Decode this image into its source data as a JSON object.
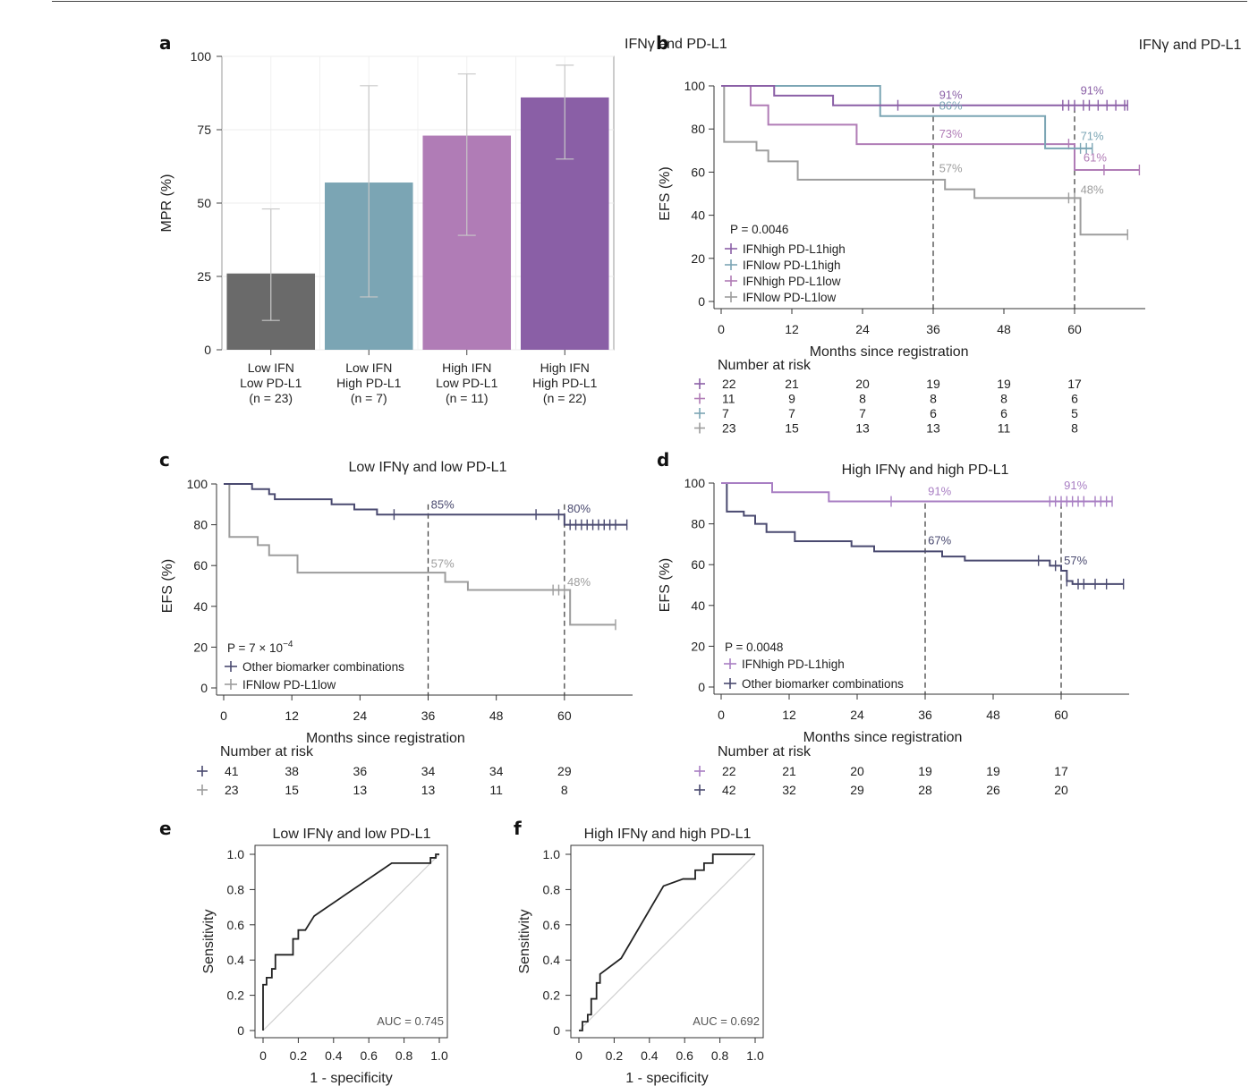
{
  "colors": {
    "purple_dark": "#8a5fa6",
    "purple_light": "#b07cb6",
    "teal": "#7ba5b4",
    "gray": "#9d9d9d",
    "dark_gray": "#6a6a6a",
    "navy": "#4a4a70",
    "ifnhigh_light": "#a87ec3"
  },
  "header": {
    "stray_title": "IFNγ and PD-L1"
  },
  "chart_data": [
    {
      "panel": "a",
      "type": "bar",
      "title": "",
      "ylabel": "MPR (%)",
      "ylim": [
        0,
        100
      ],
      "yticks": [
        "0",
        "25",
        "50",
        "75",
        "100"
      ],
      "grid": true,
      "categories": [
        [
          "Low IFN",
          "Low PD-L1",
          "(n = 23)"
        ],
        [
          "Low IFN",
          "High PD-L1",
          "(n = 7)"
        ],
        [
          "High IFN",
          "Low PD-L1",
          "(n = 11)"
        ],
        [
          "High IFN",
          "High PD-L1",
          "(n = 22)"
        ]
      ],
      "values": [
        26,
        57,
        73,
        86
      ],
      "error_low": [
        10,
        18,
        39,
        65
      ],
      "error_high": [
        48,
        90,
        94,
        97
      ],
      "bar_colors": [
        "#6a6a6a",
        "#7ba5b4",
        "#b07cb6",
        "#8a5fa6"
      ]
    },
    {
      "panel": "b",
      "type": "line",
      "title": "IFNγ and PD-L1",
      "xlabel": "Months since registration",
      "ylabel": "EFS (%)",
      "xlim": [
        0,
        72
      ],
      "ylim": [
        0,
        100
      ],
      "xticks": [
        "0",
        "12",
        "24",
        "36",
        "48",
        "60"
      ],
      "yticks": [
        "0",
        "20",
        "40",
        "60",
        "80",
        "100"
      ],
      "pvalue": "P = 0.0046",
      "vlines": [
        36,
        60
      ],
      "series": [
        {
          "name": "IFNhigh PD-L1high",
          "color": "#8a5fa6",
          "steps": [
            [
              0,
              100
            ],
            [
              9,
              95.5
            ],
            [
              19,
              91
            ],
            [
              69,
              91
            ]
          ],
          "censor": [
            30,
            58,
            59,
            60,
            61.5,
            62.5,
            64,
            65.5,
            67,
            68.5,
            69
          ]
        },
        {
          "name": "IFNlow PD-L1high",
          "color": "#7ba5b4",
          "steps": [
            [
              0,
              100
            ],
            [
              27,
              86
            ],
            [
              55,
              71
            ],
            [
              63,
              71
            ]
          ],
          "censor": [
            61,
            62,
            63
          ]
        },
        {
          "name": "IFNhigh PD-L1low",
          "color": "#b07cb6",
          "steps": [
            [
              0,
              100
            ],
            [
              5,
              91
            ],
            [
              8,
              82
            ],
            [
              23,
              73
            ],
            [
              60,
              73
            ],
            [
              60,
              61
            ],
            [
              71,
              61
            ]
          ],
          "censor": [
            59,
            65,
            71
          ]
        },
        {
          "name": "IFNlow PD-L1low",
          "color": "#9d9d9d",
          "steps": [
            [
              0,
              100
            ],
            [
              0.5,
              74
            ],
            [
              6,
              70
            ],
            [
              8,
              65
            ],
            [
              13,
              56.5
            ],
            [
              38,
              52
            ],
            [
              43,
              48
            ],
            [
              61,
              48
            ],
            [
              61,
              31
            ],
            [
              69,
              31
            ]
          ],
          "censor": [
            59,
            60,
            69
          ]
        }
      ],
      "annotations": [
        {
          "text": "91%",
          "x": 37,
          "y": 94,
          "color": "#8a5fa6"
        },
        {
          "text": "86%",
          "x": 37,
          "y": 89,
          "color": "#7ba5b4"
        },
        {
          "text": "73%",
          "x": 37,
          "y": 76,
          "color": "#b07cb6"
        },
        {
          "text": "57%",
          "x": 37,
          "y": 60,
          "color": "#9d9d9d"
        },
        {
          "text": "91%",
          "x": 61,
          "y": 96,
          "color": "#8a5fa6"
        },
        {
          "text": "71%",
          "x": 61,
          "y": 75,
          "color": "#7ba5b4"
        },
        {
          "text": "61%",
          "x": 61.5,
          "y": 65,
          "color": "#b07cb6"
        },
        {
          "text": "48%",
          "x": 61,
          "y": 50,
          "color": "#9d9d9d"
        }
      ],
      "risk_title": "Number at risk",
      "risk_rows": [
        {
          "color": "#8a5fa6",
          "values": [
            "22",
            "21",
            "20",
            "19",
            "19",
            "17"
          ]
        },
        {
          "color": "#b07cb6",
          "values": [
            "11",
            "9",
            "8",
            "8",
            "8",
            "6"
          ]
        },
        {
          "color": "#7ba5b4",
          "values": [
            "7",
            "7",
            "7",
            "6",
            "6",
            "5"
          ]
        },
        {
          "color": "#9d9d9d",
          "values": [
            "23",
            "15",
            "13",
            "13",
            "11",
            "8"
          ]
        }
      ]
    },
    {
      "panel": "c",
      "type": "line",
      "title": "Low IFNγ and low PD-L1",
      "xlabel": "Months since registration",
      "ylabel": "EFS (%)",
      "xlim": [
        0,
        72
      ],
      "ylim": [
        0,
        100
      ],
      "xticks": [
        "0",
        "12",
        "24",
        "36",
        "48",
        "60"
      ],
      "yticks": [
        "0",
        "20",
        "40",
        "60",
        "80",
        "100"
      ],
      "pvalue": "P = 7 × 10",
      "pvalue_exp": "−4",
      "vlines": [
        36,
        60
      ],
      "series": [
        {
          "name": "Other biomarker combinations",
          "color": "#4a4a70",
          "steps": [
            [
              0,
              100
            ],
            [
              1,
              100
            ],
            [
              5,
              97.5
            ],
            [
              8,
              95
            ],
            [
              9,
              92.5
            ],
            [
              19,
              90
            ],
            [
              23,
              87.5
            ],
            [
              27,
              85
            ],
            [
              55,
              85
            ],
            [
              60,
              82.5
            ],
            [
              60,
              80
            ],
            [
              71,
              80
            ]
          ],
          "censor": [
            30,
            55,
            59,
            61,
            62,
            63,
            64,
            65,
            66,
            67,
            68,
            69,
            71
          ]
        },
        {
          "name": "IFNlow PD-L1low",
          "color": "#9d9d9d",
          "steps": [
            [
              0,
              100
            ],
            [
              1,
              74
            ],
            [
              6,
              70
            ],
            [
              8,
              65
            ],
            [
              13,
              56.5
            ],
            [
              39,
              52
            ],
            [
              43,
              48
            ],
            [
              61,
              48
            ],
            [
              61,
              31
            ],
            [
              69,
              31
            ]
          ],
          "censor": [
            58,
            59,
            60,
            69
          ]
        }
      ],
      "annotations": [
        {
          "text": "85%",
          "x": 36.5,
          "y": 88,
          "color": "#4a4a70"
        },
        {
          "text": "80%",
          "x": 60.5,
          "y": 86,
          "color": "#4a4a70"
        },
        {
          "text": "57%",
          "x": 36.5,
          "y": 59,
          "color": "#9d9d9d"
        },
        {
          "text": "48%",
          "x": 60.5,
          "y": 50,
          "color": "#9d9d9d"
        }
      ],
      "risk_title": "Number at risk",
      "risk_rows": [
        {
          "color": "#4a4a70",
          "values": [
            "41",
            "38",
            "36",
            "34",
            "34",
            "29"
          ]
        },
        {
          "color": "#9d9d9d",
          "values": [
            "23",
            "15",
            "13",
            "13",
            "11",
            "8"
          ]
        }
      ]
    },
    {
      "panel": "d",
      "type": "line",
      "title": "High IFNγ and high PD-L1",
      "xlabel": "Months since registration",
      "ylabel": "EFS (%)",
      "xlim": [
        0,
        72
      ],
      "ylim": [
        0,
        100
      ],
      "xticks": [
        "0",
        "12",
        "24",
        "36",
        "48",
        "60"
      ],
      "yticks": [
        "0",
        "20",
        "40",
        "60",
        "80",
        "100"
      ],
      "pvalue": "P = 0.0048",
      "vlines": [
        36,
        60
      ],
      "series": [
        {
          "name": "IFNhigh PD-L1high",
          "color": "#a87ec3",
          "steps": [
            [
              0,
              100
            ],
            [
              9,
              95.5
            ],
            [
              19,
              91
            ],
            [
              69,
              91
            ]
          ],
          "censor": [
            30,
            58,
            59,
            60,
            61,
            62,
            63,
            64,
            66,
            67,
            68,
            69
          ]
        },
        {
          "name": "Other biomarker combinations",
          "color": "#4a4a70",
          "steps": [
            [
              0,
              100
            ],
            [
              1,
              86
            ],
            [
              4,
              84
            ],
            [
              6,
              80
            ],
            [
              8,
              76
            ],
            [
              13,
              71.5
            ],
            [
              23,
              69
            ],
            [
              27,
              66.5
            ],
            [
              39,
              64
            ],
            [
              43,
              62
            ],
            [
              58,
              59.5
            ],
            [
              60,
              57
            ],
            [
              61,
              52
            ],
            [
              62,
              50.5
            ],
            [
              71,
              50.5
            ]
          ],
          "censor": [
            56,
            59,
            61,
            63,
            64,
            66,
            68,
            71
          ]
        }
      ],
      "annotations": [
        {
          "text": "91%",
          "x": 36.5,
          "y": 94,
          "color": "#a87ec3"
        },
        {
          "text": "91%",
          "x": 60.5,
          "y": 97,
          "color": "#a87ec3"
        },
        {
          "text": "67%",
          "x": 36.5,
          "y": 70,
          "color": "#4a4a70"
        },
        {
          "text": "57%",
          "x": 60.5,
          "y": 60,
          "color": "#4a4a70"
        }
      ],
      "risk_title": "Number at risk",
      "risk_rows": [
        {
          "color": "#a87ec3",
          "values": [
            "22",
            "21",
            "20",
            "19",
            "19",
            "17"
          ]
        },
        {
          "color": "#4a4a70",
          "values": [
            "42",
            "32",
            "29",
            "28",
            "26",
            "20"
          ]
        }
      ]
    },
    {
      "panel": "e",
      "type": "line",
      "title": "Low IFNγ and low PD-L1",
      "xlabel": "1 - specificity",
      "ylabel": "Sensitivity",
      "xlim": [
        0,
        1
      ],
      "ylim": [
        0,
        1
      ],
      "xticks": [
        "0",
        "0.2",
        "0.4",
        "0.6",
        "0.8",
        "1.0"
      ],
      "yticks": [
        "0",
        "0.2",
        "0.4",
        "0.6",
        "0.8",
        "1.0"
      ],
      "auc": "AUC = 0.745",
      "points": [
        [
          0,
          0
        ],
        [
          0,
          0.26
        ],
        [
          0.02,
          0.26
        ],
        [
          0.02,
          0.3
        ],
        [
          0.05,
          0.3
        ],
        [
          0.05,
          0.35
        ],
        [
          0.07,
          0.35
        ],
        [
          0.07,
          0.43
        ],
        [
          0.12,
          0.43
        ],
        [
          0.17,
          0.43
        ],
        [
          0.17,
          0.52
        ],
        [
          0.2,
          0.52
        ],
        [
          0.2,
          0.57
        ],
        [
          0.24,
          0.57
        ],
        [
          0.29,
          0.65
        ],
        [
          0.73,
          0.95
        ],
        [
          0.95,
          0.95
        ],
        [
          0.95,
          0.98
        ],
        [
          0.98,
          0.98
        ],
        [
          0.98,
          1.0
        ],
        [
          1.0,
          1.0
        ]
      ]
    },
    {
      "panel": "f",
      "type": "line",
      "title": "High IFNγ and high PD-L1",
      "xlabel": "1 - specificity",
      "ylabel": "Sensitivity",
      "xlim": [
        0,
        1
      ],
      "ylim": [
        0,
        1
      ],
      "xticks": [
        "0",
        "0.2",
        "0.4",
        "0.6",
        "0.8",
        "1.0"
      ],
      "yticks": [
        "0",
        "0.2",
        "0.4",
        "0.6",
        "0.8",
        "1.0"
      ],
      "auc": "AUC = 0.692",
      "points": [
        [
          0,
          0
        ],
        [
          0.02,
          0
        ],
        [
          0.02,
          0.05
        ],
        [
          0.05,
          0.05
        ],
        [
          0.05,
          0.09
        ],
        [
          0.07,
          0.09
        ],
        [
          0.07,
          0.18
        ],
        [
          0.1,
          0.18
        ],
        [
          0.1,
          0.27
        ],
        [
          0.12,
          0.27
        ],
        [
          0.12,
          0.32
        ],
        [
          0.24,
          0.41
        ],
        [
          0.48,
          0.82
        ],
        [
          0.59,
          0.86
        ],
        [
          0.66,
          0.86
        ],
        [
          0.66,
          0.91
        ],
        [
          0.71,
          0.91
        ],
        [
          0.71,
          0.95
        ],
        [
          0.76,
          0.95
        ],
        [
          0.76,
          1.0
        ],
        [
          1.0,
          1.0
        ]
      ]
    }
  ]
}
